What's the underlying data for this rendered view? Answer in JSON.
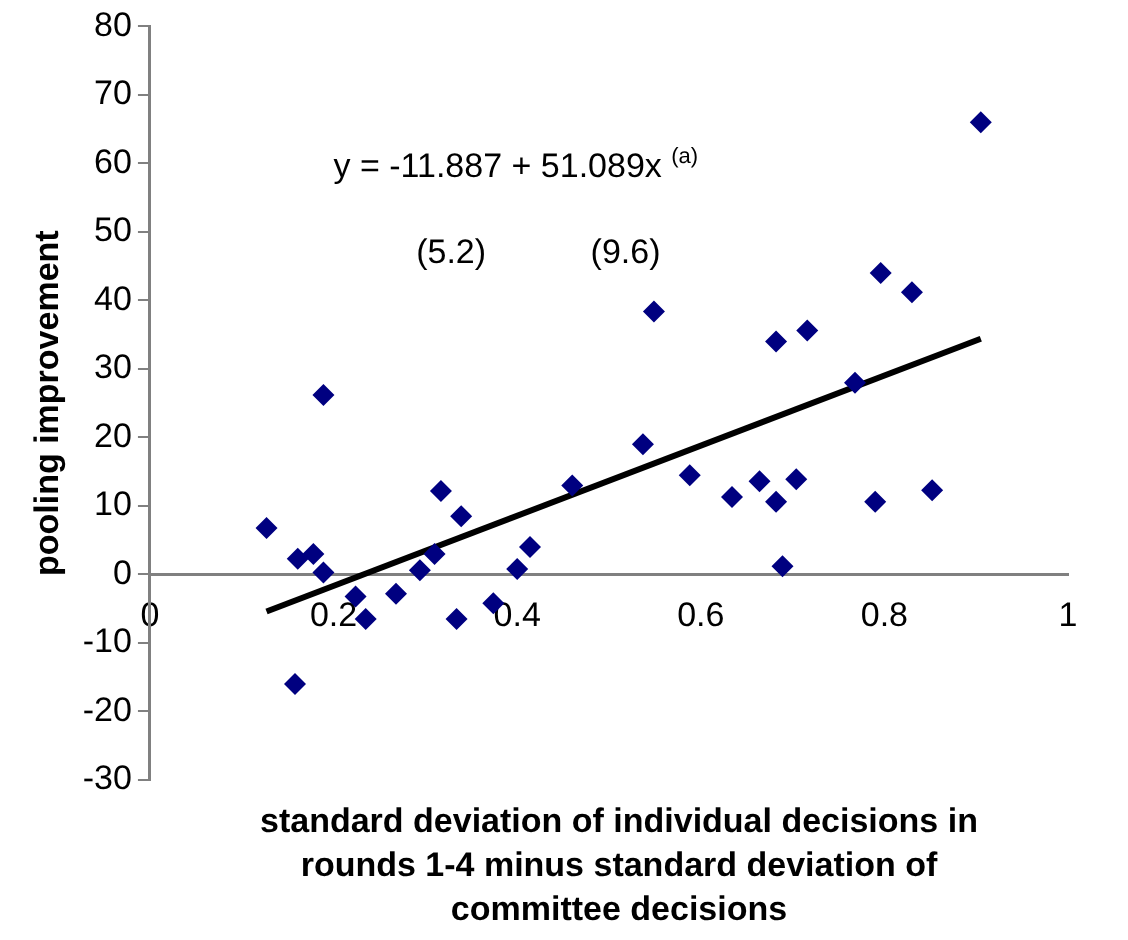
{
  "chart_data": {
    "type": "scatter",
    "xlabel": "standard deviation of individual decisions in rounds 1-4 minus standard deviation of committee decisions",
    "ylabel": "pooling improvement",
    "annotations": [
      "y = -11.887 + 51.089x $^{(a)}$",
      "(5.2)",
      "(9.6)"
    ],
    "xlim": [
      0,
      1
    ],
    "xticks": [
      0,
      0.2,
      0.4,
      0.6,
      0.8,
      1
    ],
    "ylim": [
      -30,
      80
    ],
    "yticks": [
      -30,
      -20,
      -10,
      0,
      10,
      20,
      30,
      40,
      50,
      60,
      70,
      80
    ],
    "grid": false,
    "legend": false,
    "marker": "diamond",
    "series": [
      {
        "color": "#000080",
        "x": [
          0.127,
          0.189,
          0.161,
          0.178,
          0.189,
          0.224,
          0.235,
          0.158,
          0.268,
          0.294,
          0.31,
          0.317,
          0.339,
          0.334,
          0.374,
          0.4,
          0.414,
          0.46,
          0.905,
          0.549,
          0.537,
          0.588,
          0.634,
          0.664,
          0.682,
          0.704,
          0.689,
          0.682,
          0.716,
          0.768,
          0.796,
          0.83,
          0.79,
          0.852
        ],
        "values": [
          6.8,
          26.2,
          2.3,
          3,
          0.3,
          -3.2,
          -6.5,
          -16,
          -2.8,
          0.6,
          3,
          12.2,
          8.5,
          -6.5,
          -4.2,
          0.8,
          4,
          13,
          66,
          38.4,
          19,
          14.5,
          11.3,
          13.6,
          10.6,
          13.9,
          1.2,
          34,
          35.6,
          28,
          44,
          41.2,
          10.6,
          12.3
        ]
      },
      {
        "type": "line",
        "color": "#000000",
        "marker": "none",
        "x": [
          0.127,
          0.905
        ],
        "values": [
          -5.4,
          34.4
        ]
      }
    ]
  }
}
